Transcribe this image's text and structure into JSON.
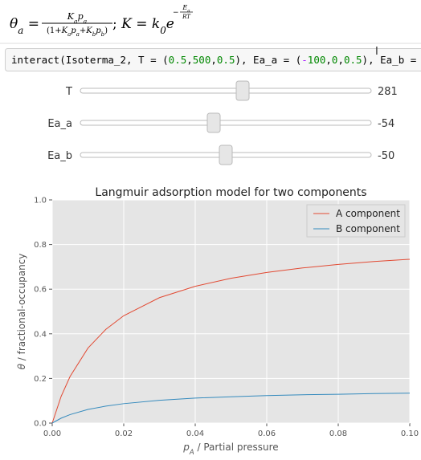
{
  "formula": {
    "lhs": [
      {
        "t": "θ",
        "s": "it"
      },
      {
        "t": "a",
        "s": "sub"
      },
      {
        "t": " = "
      }
    ],
    "num": [
      {
        "t": "K",
        "s": "it"
      },
      {
        "t": "a",
        "s": "sub"
      },
      {
        "t": "p",
        "s": "it"
      },
      {
        "t": "a",
        "s": "sub"
      }
    ],
    "den": [
      {
        "t": "(1+"
      },
      {
        "t": "K",
        "s": "it"
      },
      {
        "t": "a",
        "s": "sub"
      },
      {
        "t": "p",
        "s": "it"
      },
      {
        "t": "a",
        "s": "sub"
      },
      {
        "t": "+"
      },
      {
        "t": "K",
        "s": "it"
      },
      {
        "t": "b",
        "s": "sub"
      },
      {
        "t": "p",
        "s": "it"
      },
      {
        "t": "b",
        "s": "sub"
      },
      {
        "t": ")"
      }
    ],
    "rhs": [
      {
        "t": " ; "
      },
      {
        "t": "K",
        "s": "it"
      },
      {
        "t": " = "
      },
      {
        "t": "k",
        "s": "it"
      },
      {
        "t": "0",
        "s": "sub"
      },
      {
        "t": "e",
        "s": "it"
      }
    ],
    "exp_sign": [
      {
        "t": "−"
      }
    ],
    "exp_num": [
      {
        "t": "E",
        "s": "it"
      },
      {
        "t": "a",
        "s": "sub"
      }
    ],
    "exp_den": [
      {
        "t": "RT",
        "s": "it"
      }
    ]
  },
  "code": [
    {
      "t": "interact(Isoterma_2, T = (",
      "c": "#000000"
    },
    {
      "t": "0.5",
      "c": "#008800"
    },
    {
      "t": ",",
      "c": "#000000"
    },
    {
      "t": "500",
      "c": "#008800"
    },
    {
      "t": ",",
      "c": "#000000"
    },
    {
      "t": "0.5",
      "c": "#008800"
    },
    {
      "t": "), Ea_a = (",
      "c": "#000000"
    },
    {
      "t": "-",
      "c": "#aa22ff"
    },
    {
      "t": "100",
      "c": "#008800"
    },
    {
      "t": ",",
      "c": "#000000"
    },
    {
      "t": "0",
      "c": "#008800"
    },
    {
      "t": ",",
      "c": "#000000"
    },
    {
      "t": "0.5",
      "c": "#008800"
    },
    {
      "t": "), Ea_b = ",
      "c": "#000000"
    }
  ],
  "sliders": [
    {
      "label": "T",
      "value": "281"
    },
    {
      "label": "Ea_a",
      "value": "-54"
    },
    {
      "label": "Ea_b",
      "value": "-50"
    }
  ],
  "chart_data": {
    "type": "line",
    "title": "Langmuir adsorption model for two components",
    "xlabel": [
      {
        "t": "p",
        "s": "it"
      },
      {
        "t": "A",
        "s": "sub"
      },
      {
        "t": " / Partial pressure"
      }
    ],
    "ylabel": [
      {
        "t": "θ",
        "s": "it"
      },
      {
        "t": " / fractional-occupancy"
      }
    ],
    "x": [
      0,
      0.0025,
      0.005,
      0.01,
      0.015,
      0.02,
      0.03,
      0.04,
      0.05,
      0.06,
      0.07,
      0.08,
      0.09,
      0.1
    ],
    "series": [
      {
        "name": "A component",
        "color": "#e24a33",
        "values": [
          0,
          0.12,
          0.209,
          0.336,
          0.42,
          0.481,
          0.562,
          0.613,
          0.649,
          0.675,
          0.695,
          0.711,
          0.724,
          0.734
        ]
      },
      {
        "name": "B component",
        "color": "#348abd",
        "values": [
          0,
          0.022,
          0.038,
          0.061,
          0.076,
          0.087,
          0.102,
          0.112,
          0.118,
          0.123,
          0.127,
          0.129,
          0.132,
          0.134
        ]
      }
    ],
    "xlim": [
      0,
      0.1
    ],
    "xticks": [
      {
        "value": 0,
        "label": "0.00"
      },
      {
        "value": 0.02,
        "label": "0.02"
      },
      {
        "value": 0.04,
        "label": "0.04"
      },
      {
        "value": 0.06,
        "label": "0.06"
      },
      {
        "value": 0.08,
        "label": "0.08"
      },
      {
        "value": 0.1,
        "label": "0.10"
      }
    ],
    "ylim": [
      0,
      1
    ],
    "yticks": [
      {
        "value": 0,
        "label": "0.0"
      },
      {
        "value": 0.2,
        "label": "0.2"
      },
      {
        "value": 0.4,
        "label": "0.4"
      },
      {
        "value": 0.6,
        "label": "0.6"
      },
      {
        "value": 0.8,
        "label": "0.8"
      },
      {
        "value": 1,
        "label": "1.0"
      }
    ],
    "grid": true,
    "legend": "upper right"
  }
}
